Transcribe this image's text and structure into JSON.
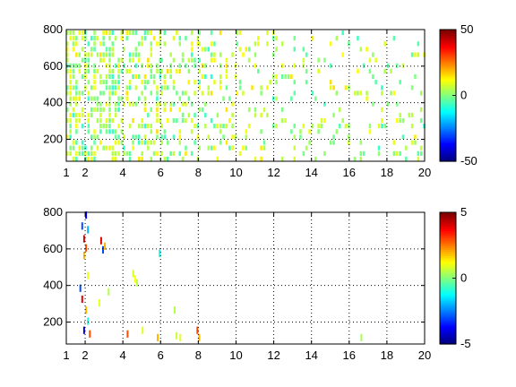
{
  "chart_data": [
    {
      "type": "heatmap",
      "title": "",
      "xlabel": "",
      "ylabel": "",
      "xlim": [
        1,
        20
      ],
      "ylim": [
        80,
        800
      ],
      "xticks": [
        1,
        2,
        4,
        6,
        8,
        10,
        12,
        14,
        16,
        18,
        20
      ],
      "yticks": [
        200,
        400,
        600,
        800
      ],
      "grid": true,
      "colorbar": {
        "range": [
          -50,
          50
        ],
        "ticks": [
          -50,
          0,
          50
        ],
        "colormap": "jet"
      },
      "cell_size": [
        0.1,
        10
      ],
      "density_profile": [
        {
          "x_from": 1,
          "x_to": 4,
          "fill": 0.55
        },
        {
          "x_from": 4,
          "x_to": 6,
          "fill": 0.38
        },
        {
          "x_from": 6,
          "x_to": 8,
          "fill": 0.28
        },
        {
          "x_from": 8,
          "x_to": 10,
          "fill": 0.22
        },
        {
          "x_from": 10,
          "x_to": 14,
          "fill": 0.15
        },
        {
          "x_from": 14,
          "x_to": 20,
          "fill": 0.12
        }
      ],
      "value_spread": 10
    },
    {
      "type": "heatmap",
      "title": "",
      "xlabel": "",
      "ylabel": "",
      "xlim": [
        1,
        20
      ],
      "ylim": [
        80,
        800
      ],
      "xticks": [
        1,
        2,
        4,
        6,
        8,
        10,
        12,
        14,
        16,
        18,
        20
      ],
      "yticks": [
        200,
        400,
        600,
        800
      ],
      "grid": true,
      "colorbar": {
        "range": [
          -5,
          5
        ],
        "ticks": [
          -5,
          0,
          5
        ],
        "colormap": "jet"
      },
      "cell_size": [
        0.1,
        10
      ],
      "points": [
        {
          "x": 1.8,
          "y": 720,
          "v": -3
        },
        {
          "x": 1.9,
          "y": 650,
          "v": 4
        },
        {
          "x": 1.9,
          "y": 560,
          "v": 2
        },
        {
          "x": 2.0,
          "y": 780,
          "v": -4
        },
        {
          "x": 2.0,
          "y": 600,
          "v": 3
        },
        {
          "x": 2.1,
          "y": 700,
          "v": -2
        },
        {
          "x": 2.1,
          "y": 450,
          "v": 1
        },
        {
          "x": 1.7,
          "y": 380,
          "v": -3
        },
        {
          "x": 1.8,
          "y": 320,
          "v": 4
        },
        {
          "x": 2.0,
          "y": 260,
          "v": 2
        },
        {
          "x": 2.1,
          "y": 200,
          "v": -1
        },
        {
          "x": 2.2,
          "y": 130,
          "v": 3
        },
        {
          "x": 1.9,
          "y": 150,
          "v": -4
        },
        {
          "x": 2.8,
          "y": 640,
          "v": 4
        },
        {
          "x": 2.9,
          "y": 590,
          "v": -3
        },
        {
          "x": 3.0,
          "y": 610,
          "v": 2
        },
        {
          "x": 2.7,
          "y": 300,
          "v": 1
        },
        {
          "x": 3.2,
          "y": 360,
          "v": 0.5
        },
        {
          "x": 4.5,
          "y": 460,
          "v": 0.8
        },
        {
          "x": 4.6,
          "y": 430,
          "v": 1.2
        },
        {
          "x": 4.7,
          "y": 410,
          "v": 0.6
        },
        {
          "x": 4.2,
          "y": 130,
          "v": 3
        },
        {
          "x": 5.0,
          "y": 150,
          "v": 1
        },
        {
          "x": 5.8,
          "y": 110,
          "v": 2
        },
        {
          "x": 5.9,
          "y": 570,
          "v": -1
        },
        {
          "x": 6.7,
          "y": 260,
          "v": 0.5
        },
        {
          "x": 6.8,
          "y": 120,
          "v": 0.7
        },
        {
          "x": 7.0,
          "y": 110,
          "v": 1
        },
        {
          "x": 7.9,
          "y": 150,
          "v": 3
        },
        {
          "x": 8.0,
          "y": 110,
          "v": 2
        },
        {
          "x": 16.6,
          "y": 110,
          "v": 0.4
        }
      ]
    }
  ]
}
